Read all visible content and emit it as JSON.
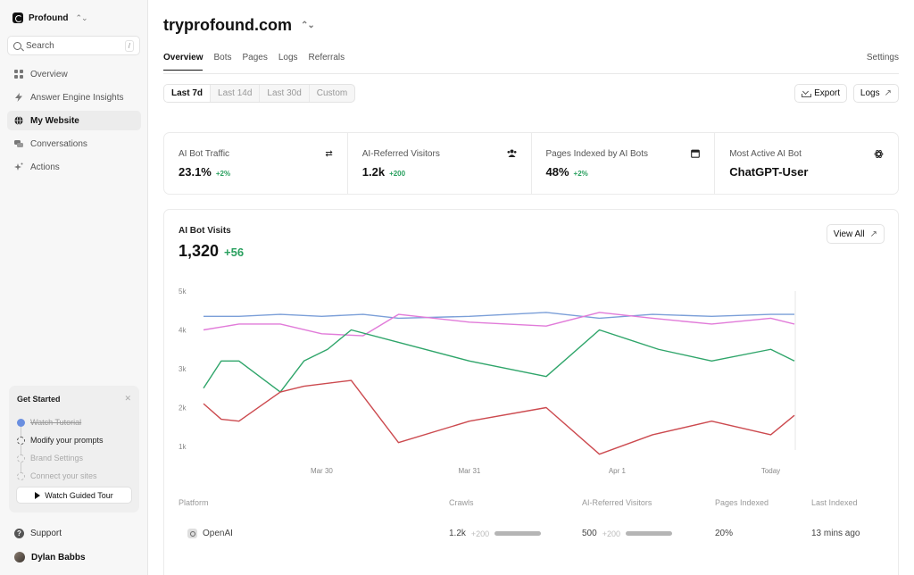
{
  "brand": {
    "name": "Profound"
  },
  "search": {
    "placeholder": "Search",
    "shortcut": "/"
  },
  "nav": [
    {
      "label": "Overview",
      "icon": "grid-icon",
      "active": false
    },
    {
      "label": "Answer Engine Insights",
      "icon": "bolt-icon",
      "active": false
    },
    {
      "label": "My Website",
      "icon": "globe-icon",
      "active": true
    },
    {
      "label": "Conversations",
      "icon": "chat-icon",
      "active": false
    },
    {
      "label": "Actions",
      "icon": "sparkle-icon",
      "active": false
    }
  ],
  "get_started": {
    "title": "Get Started",
    "steps": [
      {
        "label": "Watch Tutorial",
        "state": "done"
      },
      {
        "label": "Modify your prompts",
        "state": "current"
      },
      {
        "label": "Brand Settings",
        "state": "todo"
      },
      {
        "label": "Connect your sites",
        "state": "todo"
      }
    ],
    "tour_button": "Watch Guided Tour"
  },
  "support": "Support",
  "user": {
    "name": "Dylan Babbs"
  },
  "header": {
    "site": "tryprofound.com",
    "tabs": [
      "Overview",
      "Bots",
      "Pages",
      "Logs",
      "Referrals"
    ],
    "active_tab": "Overview",
    "settings": "Settings"
  },
  "range": {
    "options": [
      "Last 7d",
      "Last 14d",
      "Last 30d",
      "Custom"
    ],
    "active": "Last 7d"
  },
  "actions": {
    "export": "Export",
    "logs": "Logs"
  },
  "stats": [
    {
      "label": "AI Bot Traffic",
      "value": "23.1%",
      "delta": "+2%",
      "icon": "swap-icon"
    },
    {
      "label": "AI-Referred Visitors",
      "value": "1.2k",
      "delta": "+200",
      "icon": "users-icon"
    },
    {
      "label": "Pages Indexed by AI Bots",
      "value": "48%",
      "delta": "+2%",
      "icon": "calendar-icon"
    },
    {
      "label": "Most Active AI Bot",
      "value": "ChatGPT-User",
      "delta": "",
      "icon": "openai-icon"
    }
  ],
  "chart_card": {
    "title": "AI Bot Visits",
    "total": "1,320",
    "delta": "+56",
    "view_all": "View All"
  },
  "chart_data": {
    "type": "line",
    "x_ticks": [
      "Mar 30",
      "Mar 31",
      "Apr 1",
      "Today"
    ],
    "y_ticks": [
      "5k",
      "4k",
      "3k",
      "2k",
      "1k"
    ],
    "ylim": [
      1000,
      5000
    ],
    "x_range": [
      0,
      100
    ],
    "series": [
      {
        "color": "#7b9fd8",
        "x": [
          0,
          6,
          13,
          20,
          27,
          33,
          45,
          58,
          67,
          76,
          86,
          96,
          100
        ],
        "y": [
          4350,
          4350,
          4400,
          4350,
          4400,
          4300,
          4350,
          4450,
          4300,
          4400,
          4350,
          4400,
          4400
        ]
      },
      {
        "color": "#e17bd9",
        "x": [
          0,
          6,
          13,
          20,
          27,
          33,
          45,
          58,
          67,
          76,
          86,
          96,
          100
        ],
        "y": [
          4000,
          4150,
          4150,
          3900,
          3850,
          4400,
          4200,
          4100,
          4450,
          4300,
          4150,
          4300,
          4150
        ]
      },
      {
        "color": "#2fa56a",
        "x": [
          0,
          3,
          6,
          13,
          17,
          21,
          25,
          45,
          58,
          67,
          77,
          86,
          96,
          100
        ],
        "y": [
          2500,
          3200,
          3200,
          2400,
          3200,
          3500,
          4000,
          3200,
          2800,
          4000,
          3500,
          3200,
          3500,
          3200
        ]
      },
      {
        "color": "#cc4a4f",
        "x": [
          0,
          3,
          6,
          13,
          17,
          25,
          33,
          45,
          58,
          67,
          76,
          86,
          96,
          100
        ],
        "y": [
          2100,
          1700,
          1650,
          2400,
          2550,
          2700,
          1100,
          1650,
          2000,
          800,
          1300,
          1650,
          1300,
          1800
        ]
      }
    ]
  },
  "table": {
    "headers": [
      "Platform",
      "Crawls",
      "AI-Referred Visitors",
      "Pages Indexed",
      "Last Indexed"
    ],
    "rows": [
      {
        "platform": "OpenAI",
        "crawls": "1.2k",
        "crawls_delta": "+200",
        "visitors": "500",
        "visitors_delta": "+200",
        "pages": "20%",
        "last": "13 mins ago"
      }
    ]
  }
}
